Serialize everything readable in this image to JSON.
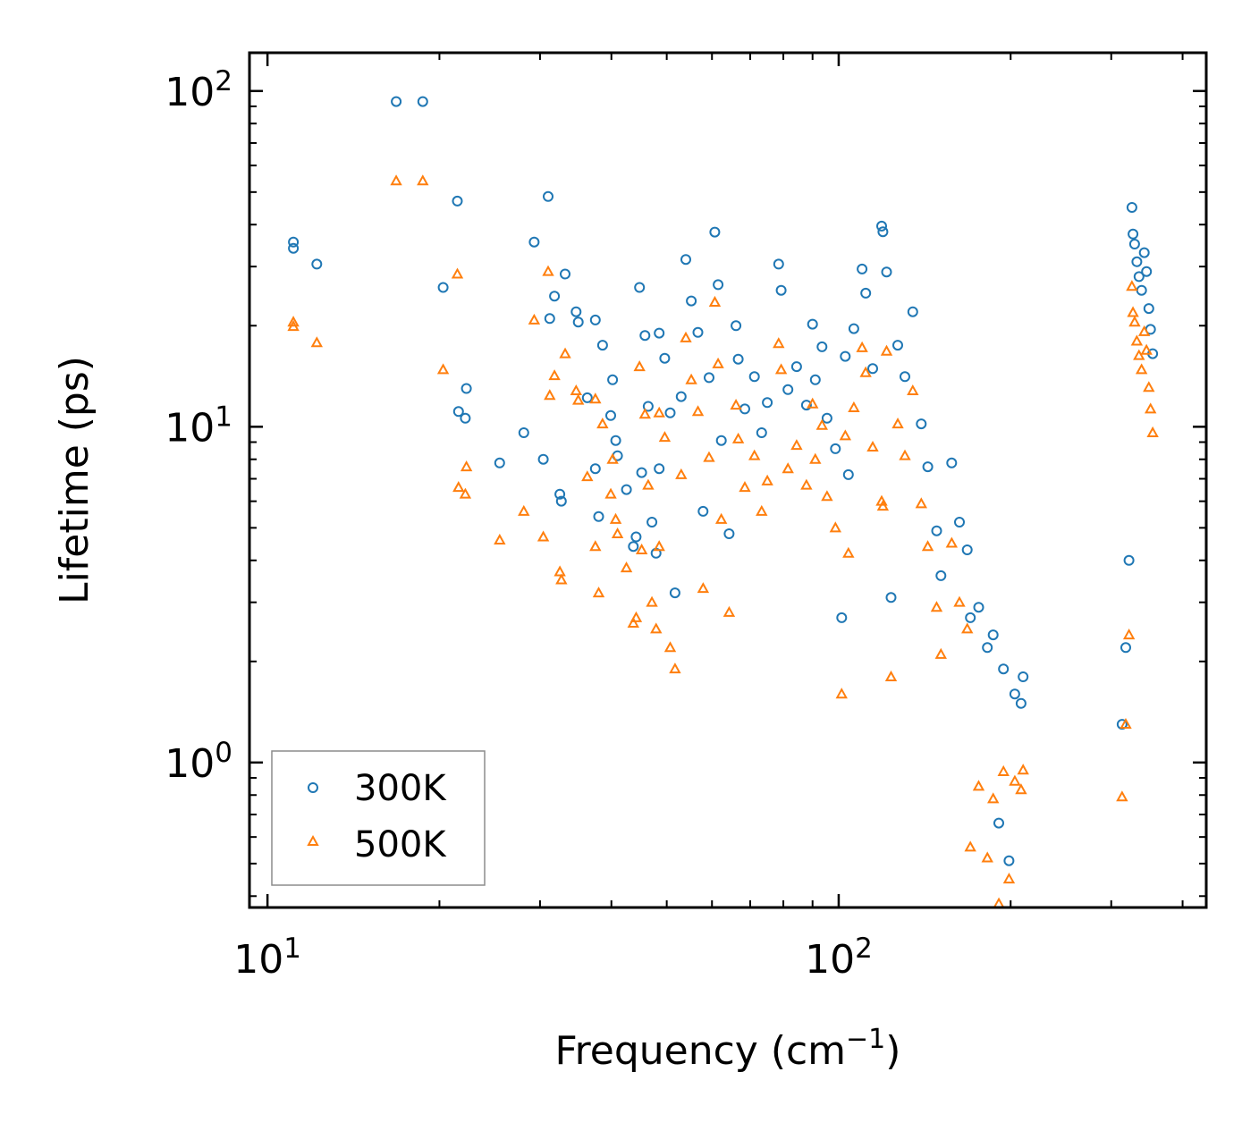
{
  "chart_data": {
    "type": "scatter",
    "xscale": "log",
    "yscale": "log",
    "xlabel": "Frequency (cm",
    "xlabel_sup": "−1",
    "xlabel_close": ")",
    "ylabel": "Lifetime (ps)",
    "xlim": [
      9.3,
      440
    ],
    "ylim": [
      0.37,
      130
    ],
    "x_ticks": [
      {
        "value": 10,
        "base": "10",
        "exp": "1"
      },
      {
        "value": 100,
        "base": "10",
        "exp": "2"
      }
    ],
    "y_ticks": [
      {
        "value": 1,
        "base": "10",
        "exp": "0"
      },
      {
        "value": 10,
        "base": "10",
        "exp": "1"
      },
      {
        "value": 100,
        "base": "10",
        "exp": "2"
      }
    ],
    "legend_position": "lower-left",
    "series": [
      {
        "name": "300K",
        "marker": "circle",
        "color": "#1f77b4",
        "points": [
          [
            11.1,
            35.5
          ],
          [
            11.1,
            34.0
          ],
          [
            12.2,
            30.5
          ],
          [
            16.8,
            93
          ],
          [
            18.7,
            93
          ],
          [
            20.3,
            26
          ],
          [
            21.5,
            47
          ],
          [
            21.6,
            11.1
          ],
          [
            22.2,
            10.6
          ],
          [
            22.3,
            13
          ],
          [
            25.5,
            7.8
          ],
          [
            28.1,
            9.6
          ],
          [
            29.3,
            35.5
          ],
          [
            30.4,
            8.0
          ],
          [
            31.0,
            48.5
          ],
          [
            31.2,
            21
          ],
          [
            31.8,
            24.5
          ],
          [
            32.5,
            6.3
          ],
          [
            32.7,
            6.0
          ],
          [
            33.2,
            28.5
          ],
          [
            34.7,
            22
          ],
          [
            35.0,
            20.5
          ],
          [
            36.3,
            12.2
          ],
          [
            37.5,
            20.8
          ],
          [
            37.5,
            7.5
          ],
          [
            38.0,
            5.4
          ],
          [
            38.6,
            17.5
          ],
          [
            39.9,
            10.8
          ],
          [
            40.2,
            13.8
          ],
          [
            40.7,
            9.1
          ],
          [
            41.0,
            8.2
          ],
          [
            42.5,
            6.5
          ],
          [
            43.7,
            4.4
          ],
          [
            44.2,
            4.7
          ],
          [
            44.8,
            26
          ],
          [
            45.2,
            7.3
          ],
          [
            45.8,
            18.7
          ],
          [
            46.4,
            11.5
          ],
          [
            47.1,
            5.2
          ],
          [
            47.9,
            4.2
          ],
          [
            48.5,
            19
          ],
          [
            48.5,
            7.5
          ],
          [
            49.6,
            16.0
          ],
          [
            50.7,
            11.0
          ],
          [
            51.7,
            3.2
          ],
          [
            53.0,
            12.3
          ],
          [
            54.0,
            31.5
          ],
          [
            55.2,
            23.7
          ],
          [
            56.7,
            19.1
          ],
          [
            57.9,
            5.6
          ],
          [
            59.3,
            14.0
          ],
          [
            60.7,
            38.0
          ],
          [
            61.5,
            26.5
          ],
          [
            62.3,
            9.1
          ],
          [
            64.3,
            4.8
          ],
          [
            66.1,
            20.0
          ],
          [
            66.7,
            15.9
          ],
          [
            68.5,
            11.3
          ],
          [
            71.2,
            14.1
          ],
          [
            73.3,
            9.6
          ],
          [
            75.0,
            11.8
          ],
          [
            78.5,
            30.5
          ],
          [
            79.3,
            25.5
          ],
          [
            81.5,
            12.9
          ],
          [
            84.4,
            15.1
          ],
          [
            87.8,
            11.6
          ],
          [
            90.0,
            20.2
          ],
          [
            91.0,
            13.8
          ],
          [
            93.5,
            17.3
          ],
          [
            95.4,
            10.6
          ],
          [
            98.7,
            8.6
          ],
          [
            101.2,
            2.7
          ],
          [
            102.7,
            16.2
          ],
          [
            104.0,
            7.2
          ],
          [
            106.3,
            19.6
          ],
          [
            109.9,
            29.5
          ],
          [
            111.5,
            25.0
          ],
          [
            114.7,
            14.9
          ],
          [
            118.9,
            39.6
          ],
          [
            119.5,
            38.1
          ],
          [
            121.3,
            28.9
          ],
          [
            123.5,
            3.1
          ],
          [
            126.9,
            17.5
          ],
          [
            130.6,
            14.1
          ],
          [
            134.8,
            22.0
          ],
          [
            139.5,
            10.2
          ],
          [
            143.2,
            7.6
          ],
          [
            148.4,
            4.9
          ],
          [
            151.0,
            3.6
          ],
          [
            157.7,
            7.8
          ],
          [
            162.7,
            5.2
          ],
          [
            167.9,
            4.3
          ],
          [
            170.0,
            2.7
          ],
          [
            175.8,
            2.9
          ],
          [
            182.1,
            2.2
          ],
          [
            186.4,
            2.4
          ],
          [
            190.7,
            0.66
          ],
          [
            194.3,
            1.9
          ],
          [
            198.7,
            0.51
          ],
          [
            203.4,
            1.6
          ],
          [
            208.6,
            1.5
          ],
          [
            210.3,
            1.8
          ],
          [
            313.4,
            1.3
          ],
          [
            318.1,
            2.2
          ],
          [
            322.3,
            4.0
          ],
          [
            326.1,
            45.0
          ],
          [
            327.5,
            37.5
          ],
          [
            329.7,
            35.0
          ],
          [
            332.6,
            31.0
          ],
          [
            335.5,
            28.0
          ],
          [
            339.0,
            25.5
          ],
          [
            342.7,
            33.0
          ],
          [
            345.8,
            29.0
          ],
          [
            349.1,
            22.5
          ],
          [
            351.5,
            19.5
          ],
          [
            354.6,
            16.5
          ]
        ]
      },
      {
        "name": "500K",
        "marker": "triangle",
        "color": "#ff7f0e",
        "points": [
          [
            11.1,
            20.5
          ],
          [
            11.1,
            19.9
          ],
          [
            12.2,
            17.8
          ],
          [
            16.8,
            54
          ],
          [
            18.7,
            54
          ],
          [
            20.3,
            14.8
          ],
          [
            21.5,
            28.5
          ],
          [
            21.6,
            6.6
          ],
          [
            22.2,
            6.3
          ],
          [
            22.3,
            7.6
          ],
          [
            25.5,
            4.6
          ],
          [
            28.1,
            5.6
          ],
          [
            29.3,
            20.8
          ],
          [
            30.4,
            4.7
          ],
          [
            31.0,
            29.0
          ],
          [
            31.2,
            12.4
          ],
          [
            31.8,
            14.2
          ],
          [
            32.5,
            3.7
          ],
          [
            32.7,
            3.5
          ],
          [
            33.2,
            16.5
          ],
          [
            34.7,
            12.8
          ],
          [
            35.0,
            12.0
          ],
          [
            36.3,
            7.1
          ],
          [
            37.5,
            12.1
          ],
          [
            37.5,
            4.4
          ],
          [
            38.0,
            3.2
          ],
          [
            38.6,
            10.2
          ],
          [
            39.9,
            6.3
          ],
          [
            40.2,
            8.0
          ],
          [
            40.7,
            5.3
          ],
          [
            41.0,
            4.8
          ],
          [
            42.5,
            3.8
          ],
          [
            43.7,
            2.6
          ],
          [
            44.2,
            2.7
          ],
          [
            44.8,
            15.1
          ],
          [
            45.2,
            4.3
          ],
          [
            45.8,
            10.9
          ],
          [
            46.4,
            6.7
          ],
          [
            47.1,
            3.0
          ],
          [
            47.9,
            2.5
          ],
          [
            48.5,
            11.0
          ],
          [
            48.5,
            4.4
          ],
          [
            49.6,
            9.3
          ],
          [
            50.7,
            2.2
          ],
          [
            51.7,
            1.9
          ],
          [
            53.0,
            7.2
          ],
          [
            54.0,
            18.4
          ],
          [
            55.2,
            13.8
          ],
          [
            56.7,
            11.1
          ],
          [
            57.9,
            3.3
          ],
          [
            59.3,
            8.1
          ],
          [
            60.7,
            23.5
          ],
          [
            61.5,
            15.4
          ],
          [
            62.3,
            5.3
          ],
          [
            64.3,
            2.8
          ],
          [
            66.1,
            11.6
          ],
          [
            66.7,
            9.2
          ],
          [
            68.5,
            6.6
          ],
          [
            71.2,
            8.2
          ],
          [
            73.3,
            5.6
          ],
          [
            75.0,
            6.9
          ],
          [
            78.5,
            17.7
          ],
          [
            79.3,
            14.8
          ],
          [
            81.5,
            7.5
          ],
          [
            84.4,
            8.8
          ],
          [
            87.8,
            6.7
          ],
          [
            90.0,
            11.7
          ],
          [
            91.0,
            8.0
          ],
          [
            93.5,
            10.1
          ],
          [
            95.4,
            6.2
          ],
          [
            98.7,
            5.0
          ],
          [
            101.2,
            1.6
          ],
          [
            102.7,
            9.4
          ],
          [
            104.0,
            4.2
          ],
          [
            106.3,
            11.4
          ],
          [
            109.9,
            17.2
          ],
          [
            111.5,
            14.5
          ],
          [
            114.7,
            8.7
          ],
          [
            118.9,
            6.0
          ],
          [
            119.5,
            5.8
          ],
          [
            121.3,
            16.8
          ],
          [
            123.5,
            1.8
          ],
          [
            126.9,
            10.2
          ],
          [
            130.6,
            8.2
          ],
          [
            134.8,
            12.8
          ],
          [
            139.5,
            5.9
          ],
          [
            143.2,
            4.4
          ],
          [
            148.4,
            2.9
          ],
          [
            151.0,
            2.1
          ],
          [
            157.7,
            4.5
          ],
          [
            162.7,
            3.0
          ],
          [
            167.9,
            2.5
          ],
          [
            170.0,
            0.56
          ],
          [
            175.8,
            0.85
          ],
          [
            182.1,
            0.52
          ],
          [
            186.4,
            0.78
          ],
          [
            190.7,
            0.38
          ],
          [
            194.3,
            0.94
          ],
          [
            198.7,
            0.45
          ],
          [
            203.4,
            0.88
          ],
          [
            208.6,
            0.83
          ],
          [
            210.3,
            0.95
          ],
          [
            313.4,
            0.79
          ],
          [
            318.1,
            1.3
          ],
          [
            322.3,
            2.4
          ],
          [
            326.1,
            26.2
          ],
          [
            327.5,
            21.9
          ],
          [
            329.7,
            20.5
          ],
          [
            332.6,
            18.0
          ],
          [
            335.5,
            16.3
          ],
          [
            339.0,
            14.8
          ],
          [
            342.7,
            19.2
          ],
          [
            345.8,
            16.9
          ],
          [
            349.1,
            13.1
          ],
          [
            351.5,
            11.3
          ],
          [
            354.6,
            9.6
          ]
        ]
      }
    ]
  }
}
